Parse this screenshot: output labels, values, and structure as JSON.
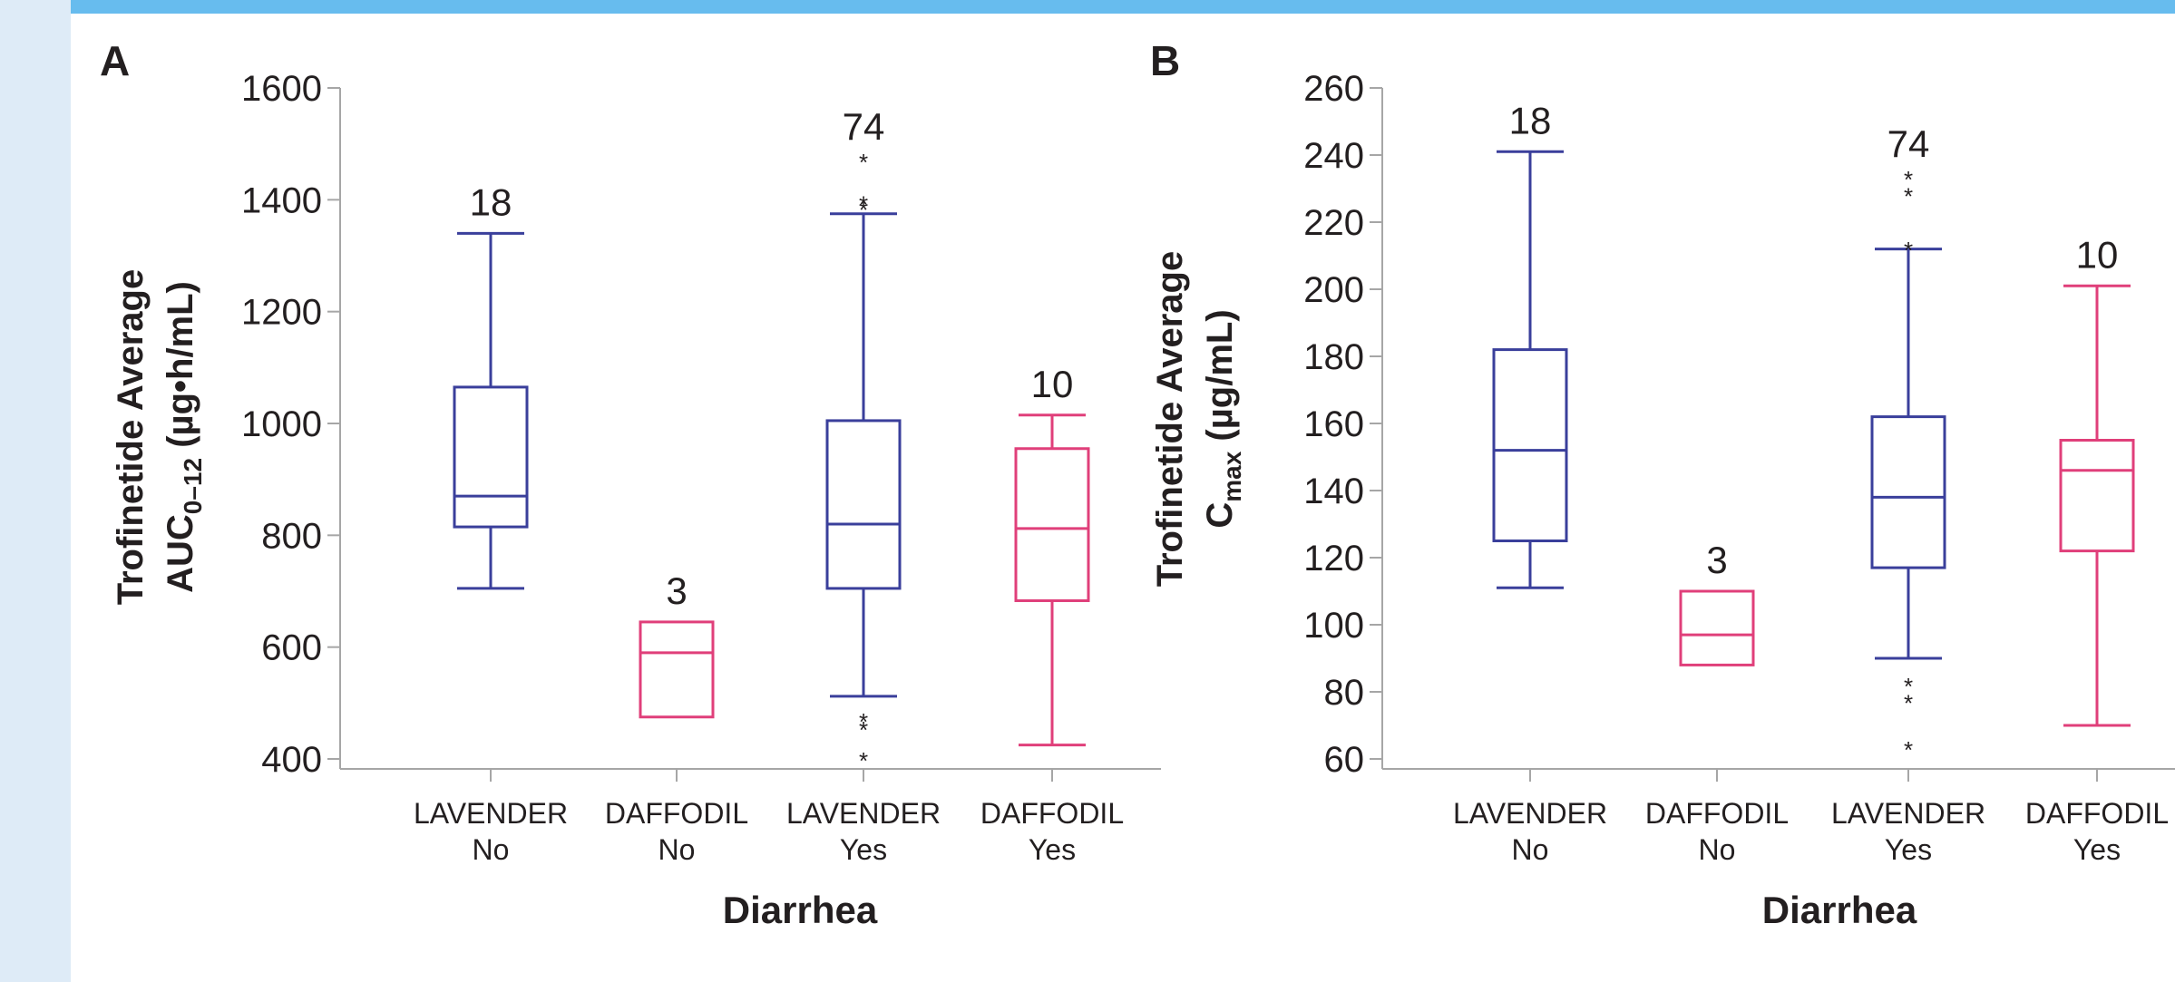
{
  "colors": {
    "lavender": "#3a3f9b",
    "daffodil": "#e03f7a",
    "axis": "#a6a6a6",
    "text": "#231f20",
    "frame_left": "#deebf7",
    "frame_top": "#67bcee"
  },
  "panels": [
    {
      "letter": "A",
      "ylabel_line1": "Trofinetide Average",
      "ylabel_line2_main": "AUC",
      "ylabel_line2_sub": "0–12",
      "ylabel_line2_tail": " (µg•h/mL)",
      "xlabel": "Diarrhea"
    },
    {
      "letter": "B",
      "ylabel_line1": "Trofinetide Average",
      "ylabel_line2_main": "C",
      "ylabel_line2_sub": "max",
      "ylabel_line2_tail": " (µg/mL)",
      "xlabel": "Diarrhea"
    }
  ],
  "chart_data": [
    {
      "type": "box",
      "panel": "A",
      "ylim": [
        400,
        1600
      ],
      "yticks": [
        400,
        600,
        800,
        1000,
        1200,
        1400,
        1600
      ],
      "grid": false,
      "xlabel": "Diarrhea",
      "ylabel": "Trofinetide Average AUC0–12 (µg•h/mL)",
      "categories": [
        {
          "line1": "LAVENDER",
          "line2": "No"
        },
        {
          "line1": "DAFFODIL",
          "line2": "No"
        },
        {
          "line1": "LAVENDER",
          "line2": "Yes"
        },
        {
          "line1": "DAFFODIL",
          "line2": "Yes"
        }
      ],
      "boxes": [
        {
          "group": "LAVENDER",
          "n": "18",
          "whisker_low": 705,
          "q1": 815,
          "median": 870,
          "q3": 1065,
          "whisker_high": 1340,
          "outliers": []
        },
        {
          "group": "DAFFODIL",
          "n": "3",
          "whisker_low": null,
          "q1": 475,
          "median": 590,
          "q3": 645,
          "whisker_high": null,
          "outliers": []
        },
        {
          "group": "LAVENDER",
          "n": "74",
          "whisker_low": 512,
          "q1": 705,
          "median": 820,
          "q3": 1005,
          "whisker_high": 1375,
          "outliers": [
            1475,
            1400,
            1390,
            475,
            460,
            405
          ]
        },
        {
          "group": "DAFFODIL",
          "n": "10",
          "whisker_low": 425,
          "q1": 683,
          "median": 812,
          "q3": 955,
          "whisker_high": 1015,
          "outliers": []
        }
      ]
    },
    {
      "type": "box",
      "panel": "B",
      "ylim": [
        60,
        260
      ],
      "yticks": [
        60,
        80,
        100,
        120,
        140,
        160,
        180,
        200,
        220,
        240,
        260
      ],
      "grid": false,
      "xlabel": "Diarrhea",
      "ylabel": "Trofinetide Average Cmax (µg/mL)",
      "categories": [
        {
          "line1": "LAVENDER",
          "line2": "No"
        },
        {
          "line1": "DAFFODIL",
          "line2": "No"
        },
        {
          "line1": "LAVENDER",
          "line2": "Yes"
        },
        {
          "line1": "DAFFODIL",
          "line2": "Yes"
        }
      ],
      "boxes": [
        {
          "group": "LAVENDER",
          "n": "18",
          "whisker_low": 111,
          "q1": 125,
          "median": 152,
          "q3": 182,
          "whisker_high": 241,
          "outliers": []
        },
        {
          "group": "DAFFODIL",
          "n": "3",
          "whisker_low": null,
          "q1": 88,
          "median": 97,
          "q3": 110,
          "whisker_high": null,
          "outliers": []
        },
        {
          "group": "LAVENDER",
          "n": "74",
          "whisker_low": 90,
          "q1": 117,
          "median": 138,
          "q3": 162,
          "whisker_high": 212,
          "outliers": [
            234,
            229,
            213,
            83,
            78,
            64
          ]
        },
        {
          "group": "DAFFODIL",
          "n": "10",
          "whisker_low": 70,
          "q1": 122,
          "median": 146,
          "q3": 155,
          "whisker_high": 201,
          "outliers": []
        }
      ]
    }
  ]
}
